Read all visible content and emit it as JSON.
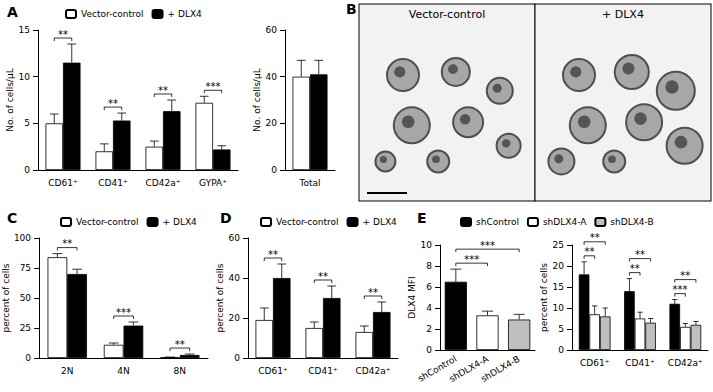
{
  "chart_data": [
    {
      "type": "bar",
      "title": "A",
      "y_label": "No. of cells/µL",
      "categories": [
        "CD61⁺",
        "CD41⁺",
        "CD42a⁺",
        "GYPA⁺"
      ],
      "series": [
        {
          "name": "Vector-control",
          "color": "#ffffff",
          "values": [
            5,
            2,
            2.5,
            7.2
          ],
          "errors": [
            1,
            0.8,
            0.6,
            0.7
          ]
        },
        {
          "name": "+ DLX4",
          "color": "#000000",
          "values": [
            11.5,
            5.3,
            6.3,
            2.2
          ],
          "errors": [
            2,
            0.8,
            1.2,
            0.4
          ]
        }
      ],
      "ylim": [
        0,
        15
      ],
      "yticks": [
        0,
        5,
        10,
        15
      ],
      "legend": "top",
      "annotations": [
        {
          "category": "CD61⁺",
          "between": [
            "Vector-control",
            "+ DLX4"
          ],
          "text": "**"
        },
        {
          "category": "CD41⁺",
          "between": [
            "Vector-control",
            "+ DLX4"
          ],
          "text": "**"
        },
        {
          "category": "CD42a⁺",
          "between": [
            "Vector-control",
            "+ DLX4"
          ],
          "text": "**"
        },
        {
          "category": "GYPA⁺",
          "between": [
            "Vector-control",
            "+ DLX4"
          ],
          "text": "***"
        }
      ]
    },
    {
      "type": "bar",
      "y_label": "No. of cells/µL",
      "categories": [
        "Total"
      ],
      "series": [
        {
          "name": "Vector-control",
          "color": "#ffffff",
          "values": [
            40
          ],
          "errors": [
            7
          ]
        },
        {
          "name": "+ DLX4",
          "color": "#000000",
          "values": [
            41
          ],
          "errors": [
            6
          ]
        }
      ],
      "ylim": [
        0,
        60
      ],
      "yticks": [
        0,
        20,
        40,
        60
      ]
    },
    {
      "type": "image",
      "title": "B",
      "panels": [
        "Vector-control",
        "+ DLX4"
      ]
    },
    {
      "type": "bar",
      "title": "C",
      "y_label": "percent of cells",
      "categories": [
        "2N",
        "4N",
        "8N"
      ],
      "series": [
        {
          "name": "Vector-control",
          "color": "#ffffff",
          "values": [
            84,
            11,
            0.5
          ],
          "errors": [
            3,
            1.5,
            0.3
          ]
        },
        {
          "name": "+ DLX4",
          "color": "#000000",
          "values": [
            70,
            27,
            2.5
          ],
          "errors": [
            4,
            3,
            0.8
          ]
        }
      ],
      "ylim": [
        0,
        100
      ],
      "yticks": [
        0,
        25,
        50,
        75,
        100
      ],
      "legend": "top",
      "annotations": [
        {
          "category": "2N",
          "between": [
            "Vector-control",
            "+ DLX4"
          ],
          "text": "**"
        },
        {
          "category": "4N",
          "between": [
            "Vector-control",
            "+ DLX4"
          ],
          "text": "***"
        },
        {
          "category": "8N",
          "between": [
            "Vector-control",
            "+ DLX4"
          ],
          "text": "**"
        }
      ]
    },
    {
      "type": "bar",
      "title": "D",
      "y_label": "percent of cells",
      "categories": [
        "CD61⁺",
        "CD41⁺",
        "CD42a⁺"
      ],
      "series": [
        {
          "name": "Vector-control",
          "color": "#ffffff",
          "values": [
            19,
            15,
            13
          ],
          "errors": [
            6,
            3,
            3
          ]
        },
        {
          "name": "+ DLX4",
          "color": "#000000",
          "values": [
            40,
            30,
            23
          ],
          "errors": [
            7,
            6,
            5
          ]
        }
      ],
      "ylim": [
        0,
        60
      ],
      "yticks": [
        0,
        20,
        40,
        60
      ],
      "legend": "top",
      "annotations": [
        {
          "category": "CD61⁺",
          "between": [
            "Vector-control",
            "+ DLX4"
          ],
          "text": "**"
        },
        {
          "category": "CD41⁺",
          "between": [
            "Vector-control",
            "+ DLX4"
          ],
          "text": "**"
        },
        {
          "category": "CD42a⁺",
          "between": [
            "Vector-control",
            "+ DLX4"
          ],
          "text": "**"
        }
      ]
    },
    {
      "type": "bar",
      "title": "E",
      "y_label": "DLX4 MFI",
      "categories": [
        "shControl",
        "shDLX4-A",
        "shDLX4-B"
      ],
      "values": [
        6.5,
        3.3,
        2.9
      ],
      "errors": [
        1.2,
        0.4,
        0.5
      ],
      "colors": [
        "#000000",
        "#ffffff",
        "#bfbfbf"
      ],
      "ylim": [
        0,
        10
      ],
      "yticks": [
        0,
        2,
        4,
        6,
        8,
        10
      ],
      "annotations": [
        {
          "between": [
            "shControl",
            "shDLX4-A"
          ],
          "text": "***"
        },
        {
          "between": [
            "shControl",
            "shDLX4-B"
          ],
          "text": "***"
        }
      ]
    },
    {
      "type": "bar",
      "y_label": "percent of cells",
      "categories": [
        "CD61⁺",
        "CD41⁺",
        "CD42a⁺"
      ],
      "series": [
        {
          "name": "shControl",
          "color": "#000000",
          "values": [
            18,
            14,
            11
          ],
          "errors": [
            3,
            3,
            1
          ]
        },
        {
          "name": "shDLX4-A",
          "color": "#ffffff",
          "values": [
            8.5,
            7.5,
            5.5
          ],
          "errors": [
            2,
            1.5,
            0.8
          ]
        },
        {
          "name": "shDLX4-B",
          "color": "#bfbfbf",
          "values": [
            8,
            6.5,
            6
          ],
          "errors": [
            2,
            1,
            0.8
          ]
        }
      ],
      "ylim": [
        0,
        25
      ],
      "yticks": [
        0,
        5,
        10,
        15,
        20,
        25
      ],
      "legend": "top",
      "annotations": [
        {
          "category": "CD61⁺",
          "between": [
            "shControl",
            "shDLX4-A"
          ],
          "text": "**"
        },
        {
          "category": "CD61⁺",
          "between": [
            "shControl",
            "shDLX4-B"
          ],
          "text": "**"
        },
        {
          "category": "CD41⁺",
          "between": [
            "shControl",
            "shDLX4-A"
          ],
          "text": "**"
        },
        {
          "category": "CD41⁺",
          "between": [
            "shControl",
            "shDLX4-B"
          ],
          "text": "**"
        },
        {
          "category": "CD42a⁺",
          "between": [
            "shControl",
            "shDLX4-A"
          ],
          "text": "***"
        },
        {
          "category": "CD42a⁺",
          "between": [
            "shControl",
            "shDLX4-B"
          ],
          "text": "**"
        }
      ]
    }
  ]
}
